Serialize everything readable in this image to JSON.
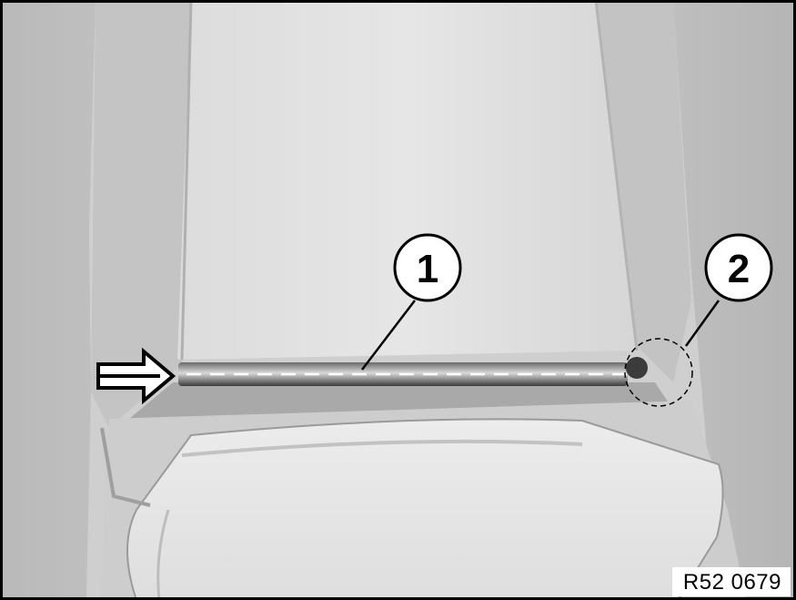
{
  "callouts": [
    {
      "label": "1"
    },
    {
      "label": "2"
    }
  ],
  "reference": "R52 0679",
  "colors": {
    "background": "#c9c9c9",
    "frame": "#000000"
  },
  "icons": [
    "arrow-right-icon"
  ]
}
